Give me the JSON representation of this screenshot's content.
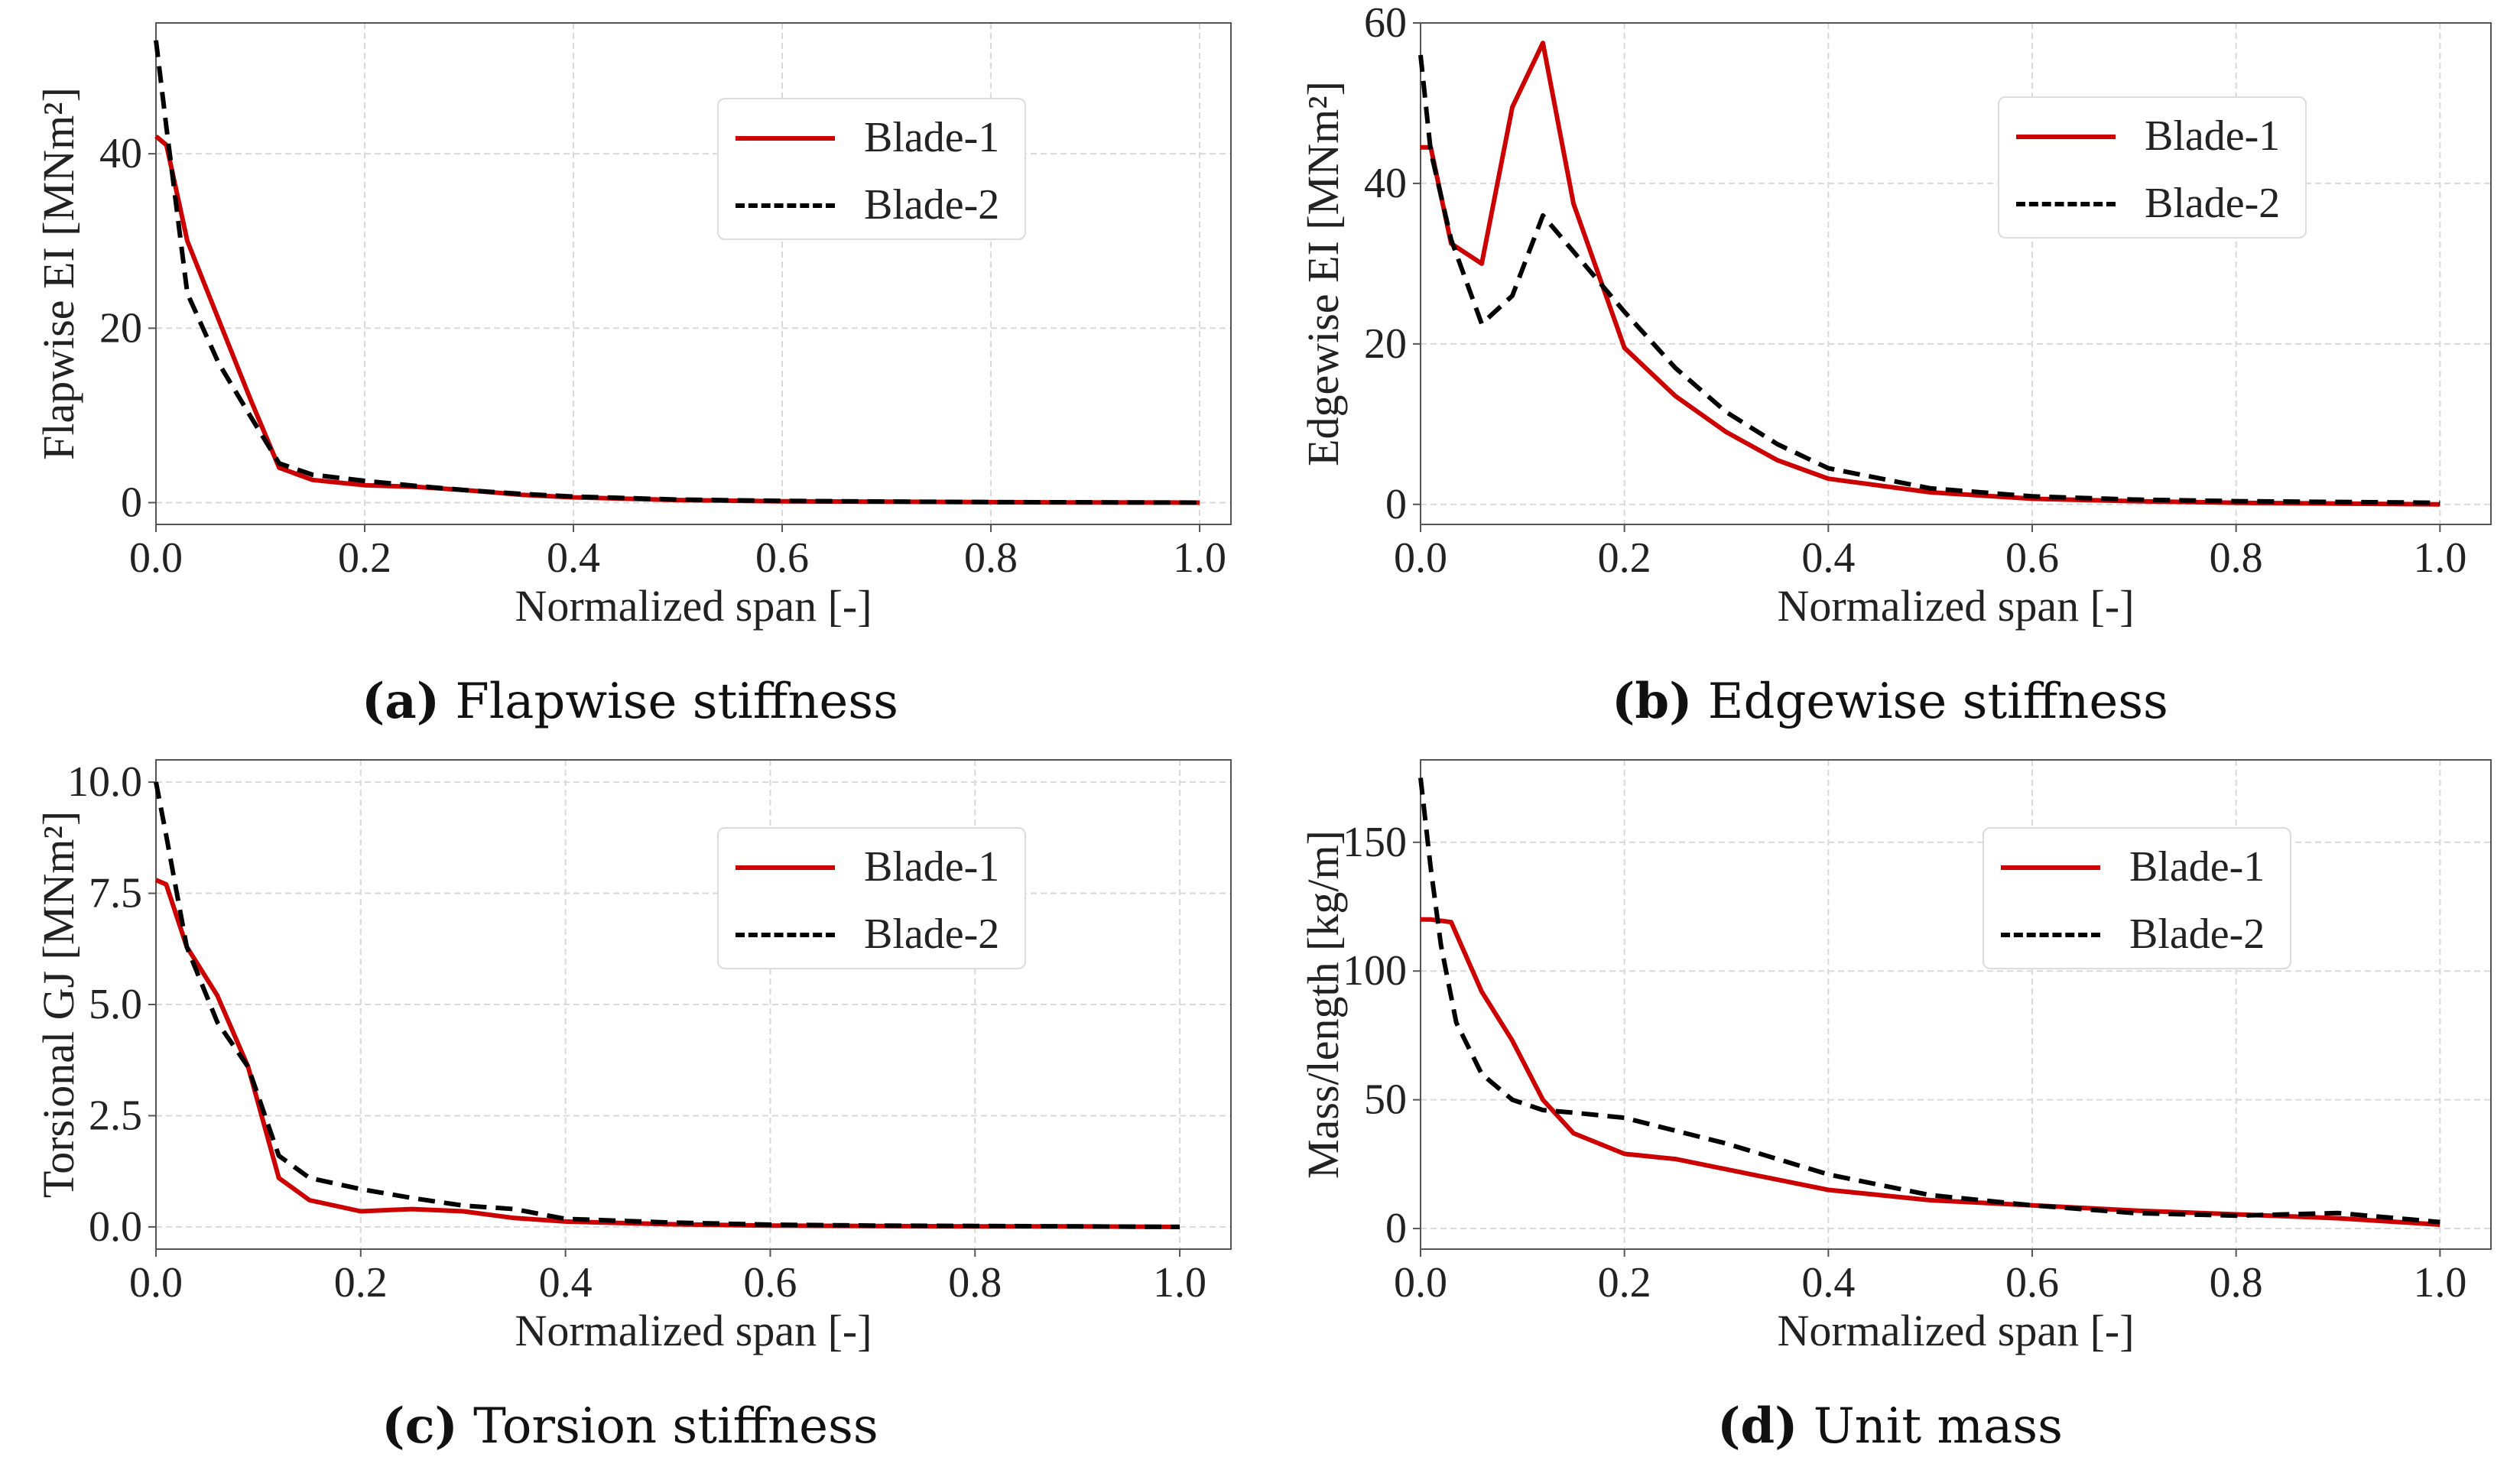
{
  "colors": {
    "blade1": "#cc0000",
    "blade2": "#000000",
    "grid": "#d9d9d9",
    "axis": "#555555"
  },
  "chart_data": [
    {
      "type": "line",
      "caption_label": "(a)",
      "caption_text": "Flapwise stiffness",
      "ylabel": "Flapwise EI [MNm²]",
      "xlabel": "Normalized span [-]",
      "xlim": [
        0,
        1.03
      ],
      "ylim": [
        -2.5,
        55
      ],
      "xticks": [
        0,
        0.2,
        0.4,
        0.6,
        0.8,
        1.0
      ],
      "xtick_labels": [
        "0.0",
        "0.2",
        "0.4",
        "0.6",
        "0.8",
        "1.0"
      ],
      "yticks": [
        0,
        20,
        40
      ],
      "ytick_labels": [
        "0",
        "20",
        "40"
      ],
      "legend": [
        "Blade-1",
        "Blade-2"
      ],
      "series": [
        {
          "name": "Blade-1",
          "style": "solid",
          "x": [
            0.0,
            0.01,
            0.03,
            0.06,
            0.09,
            0.118,
            0.15,
            0.2,
            0.25,
            0.3,
            0.35,
            0.4,
            0.5,
            0.6,
            0.7,
            0.8,
            0.9,
            1.0
          ],
          "y": [
            42,
            41,
            30,
            21,
            12,
            4,
            2.6,
            2.0,
            1.8,
            1.4,
            0.9,
            0.6,
            0.3,
            0.15,
            0.1,
            0.05,
            0.02,
            0.0
          ]
        },
        {
          "name": "Blade-2",
          "style": "dashed",
          "x": [
            0.0,
            0.01,
            0.03,
            0.06,
            0.09,
            0.118,
            0.15,
            0.2,
            0.25,
            0.3,
            0.35,
            0.4,
            0.5,
            0.6,
            0.7,
            0.8,
            0.9,
            1.0
          ],
          "y": [
            53,
            43,
            24,
            16,
            10,
            4.5,
            3.2,
            2.5,
            1.9,
            1.4,
            1.0,
            0.7,
            0.35,
            0.2,
            0.12,
            0.06,
            0.03,
            0.0
          ]
        }
      ]
    },
    {
      "type": "line",
      "caption_label": "(b)",
      "caption_text": "Edgewise stiffness",
      "ylabel": "Edgewise EI [MNm²]",
      "xlabel": "Normalized span [-]",
      "xlim": [
        0,
        1.05
      ],
      "ylim": [
        -2.5,
        60
      ],
      "xticks": [
        0,
        0.2,
        0.4,
        0.6,
        0.8,
        1.0
      ],
      "xtick_labels": [
        "0.0",
        "0.2",
        "0.4",
        "0.6",
        "0.8",
        "1.0"
      ],
      "yticks": [
        0,
        20,
        40,
        60
      ],
      "ytick_labels": [
        "0",
        "20",
        "40",
        "60"
      ],
      "legend": [
        "Blade-1",
        "Blade-2"
      ],
      "series": [
        {
          "name": "Blade-1",
          "style": "solid",
          "x": [
            0.0,
            0.01,
            0.03,
            0.06,
            0.09,
            0.12,
            0.15,
            0.2,
            0.25,
            0.3,
            0.35,
            0.4,
            0.5,
            0.6,
            0.7,
            0.8,
            0.9,
            1.0
          ],
          "y": [
            44.5,
            44.5,
            32.5,
            30,
            49.5,
            57.5,
            37.5,
            19.5,
            13.5,
            9,
            5.5,
            3.2,
            1.5,
            0.7,
            0.4,
            0.2,
            0.1,
            0.0
          ]
        },
        {
          "name": "Blade-2",
          "style": "dashed",
          "x": [
            0.0,
            0.01,
            0.03,
            0.06,
            0.09,
            0.12,
            0.15,
            0.2,
            0.25,
            0.3,
            0.35,
            0.4,
            0.5,
            0.6,
            0.7,
            0.8,
            0.9,
            1.0
          ],
          "y": [
            56,
            44,
            33,
            22.5,
            26,
            36,
            31.5,
            24,
            17,
            11.5,
            7.5,
            4.5,
            2.0,
            1.0,
            0.6,
            0.4,
            0.3,
            0.2
          ]
        }
      ]
    },
    {
      "type": "line",
      "caption_label": "(c)",
      "caption_text": "Torsion stiffness",
      "ylabel": "Torsional GJ [MNm²]",
      "xlabel": "Normalized span [-]",
      "xlim": [
        0,
        1.05
      ],
      "ylim": [
        -0.5,
        10.5
      ],
      "xticks": [
        0,
        0.2,
        0.4,
        0.6,
        0.8,
        1.0
      ],
      "xtick_labels": [
        "0.0",
        "0.2",
        "0.4",
        "0.6",
        "0.8",
        "1.0"
      ],
      "yticks": [
        0,
        2.5,
        5.0,
        7.5,
        10.0
      ],
      "ytick_labels": [
        "0.0",
        "2.5",
        "5.0",
        "7.5",
        "10.0"
      ],
      "legend": [
        "Blade-1",
        "Blade-2"
      ],
      "series": [
        {
          "name": "Blade-1",
          "style": "solid",
          "x": [
            0.0,
            0.01,
            0.03,
            0.06,
            0.09,
            0.12,
            0.15,
            0.2,
            0.25,
            0.3,
            0.35,
            0.4,
            0.5,
            0.6,
            0.7,
            0.8,
            0.9,
            1.0
          ],
          "y": [
            7.8,
            7.7,
            6.3,
            5.2,
            3.6,
            1.1,
            0.6,
            0.35,
            0.4,
            0.35,
            0.2,
            0.12,
            0.06,
            0.03,
            0.02,
            0.01,
            0.01,
            0.0
          ]
        },
        {
          "name": "Blade-2",
          "style": "dashed",
          "x": [
            0.0,
            0.01,
            0.03,
            0.06,
            0.09,
            0.12,
            0.15,
            0.2,
            0.25,
            0.3,
            0.35,
            0.4,
            0.5,
            0.6,
            0.7,
            0.8,
            0.9,
            1.0
          ],
          "y": [
            10.0,
            8.8,
            6.3,
            4.6,
            3.6,
            1.6,
            1.1,
            0.85,
            0.65,
            0.48,
            0.4,
            0.18,
            0.1,
            0.05,
            0.03,
            0.02,
            0.01,
            0.0
          ]
        }
      ]
    },
    {
      "type": "line",
      "caption_label": "(d)",
      "caption_text": "Unit mass",
      "ylabel": "Mass/length [kg/m]",
      "xlabel": "Normalized span [-]",
      "xlim": [
        0,
        1.05
      ],
      "ylim": [
        -8,
        182
      ],
      "xticks": [
        0,
        0.2,
        0.4,
        0.6,
        0.8,
        1.0
      ],
      "xtick_labels": [
        "0.0",
        "0.2",
        "0.4",
        "0.6",
        "0.8",
        "1.0"
      ],
      "yticks": [
        0,
        50,
        100,
        150
      ],
      "ytick_labels": [
        "0",
        "50",
        "100",
        "150"
      ],
      "legend": [
        "Blade-1",
        "Blade-2"
      ],
      "series": [
        {
          "name": "Blade-1",
          "style": "solid",
          "x": [
            0.0,
            0.01,
            0.03,
            0.06,
            0.09,
            0.12,
            0.15,
            0.2,
            0.25,
            0.3,
            0.35,
            0.4,
            0.5,
            0.6,
            0.7,
            0.8,
            0.9,
            1.0
          ],
          "y": [
            120,
            120,
            119,
            92,
            73,
            50,
            37,
            29,
            27,
            23,
            19,
            15,
            11,
            9,
            7,
            5.5,
            4,
            1.5
          ]
        },
        {
          "name": "Blade-2",
          "style": "dashed",
          "x": [
            0.0,
            0.01,
            0.02,
            0.035,
            0.06,
            0.09,
            0.12,
            0.15,
            0.2,
            0.25,
            0.3,
            0.35,
            0.4,
            0.5,
            0.6,
            0.7,
            0.8,
            0.9,
            1.0
          ],
          "y": [
            175,
            140,
            110,
            80,
            60,
            50,
            46,
            45,
            43,
            38,
            33,
            27,
            21,
            13,
            9,
            6,
            5,
            6,
            2.5
          ]
        }
      ]
    }
  ]
}
